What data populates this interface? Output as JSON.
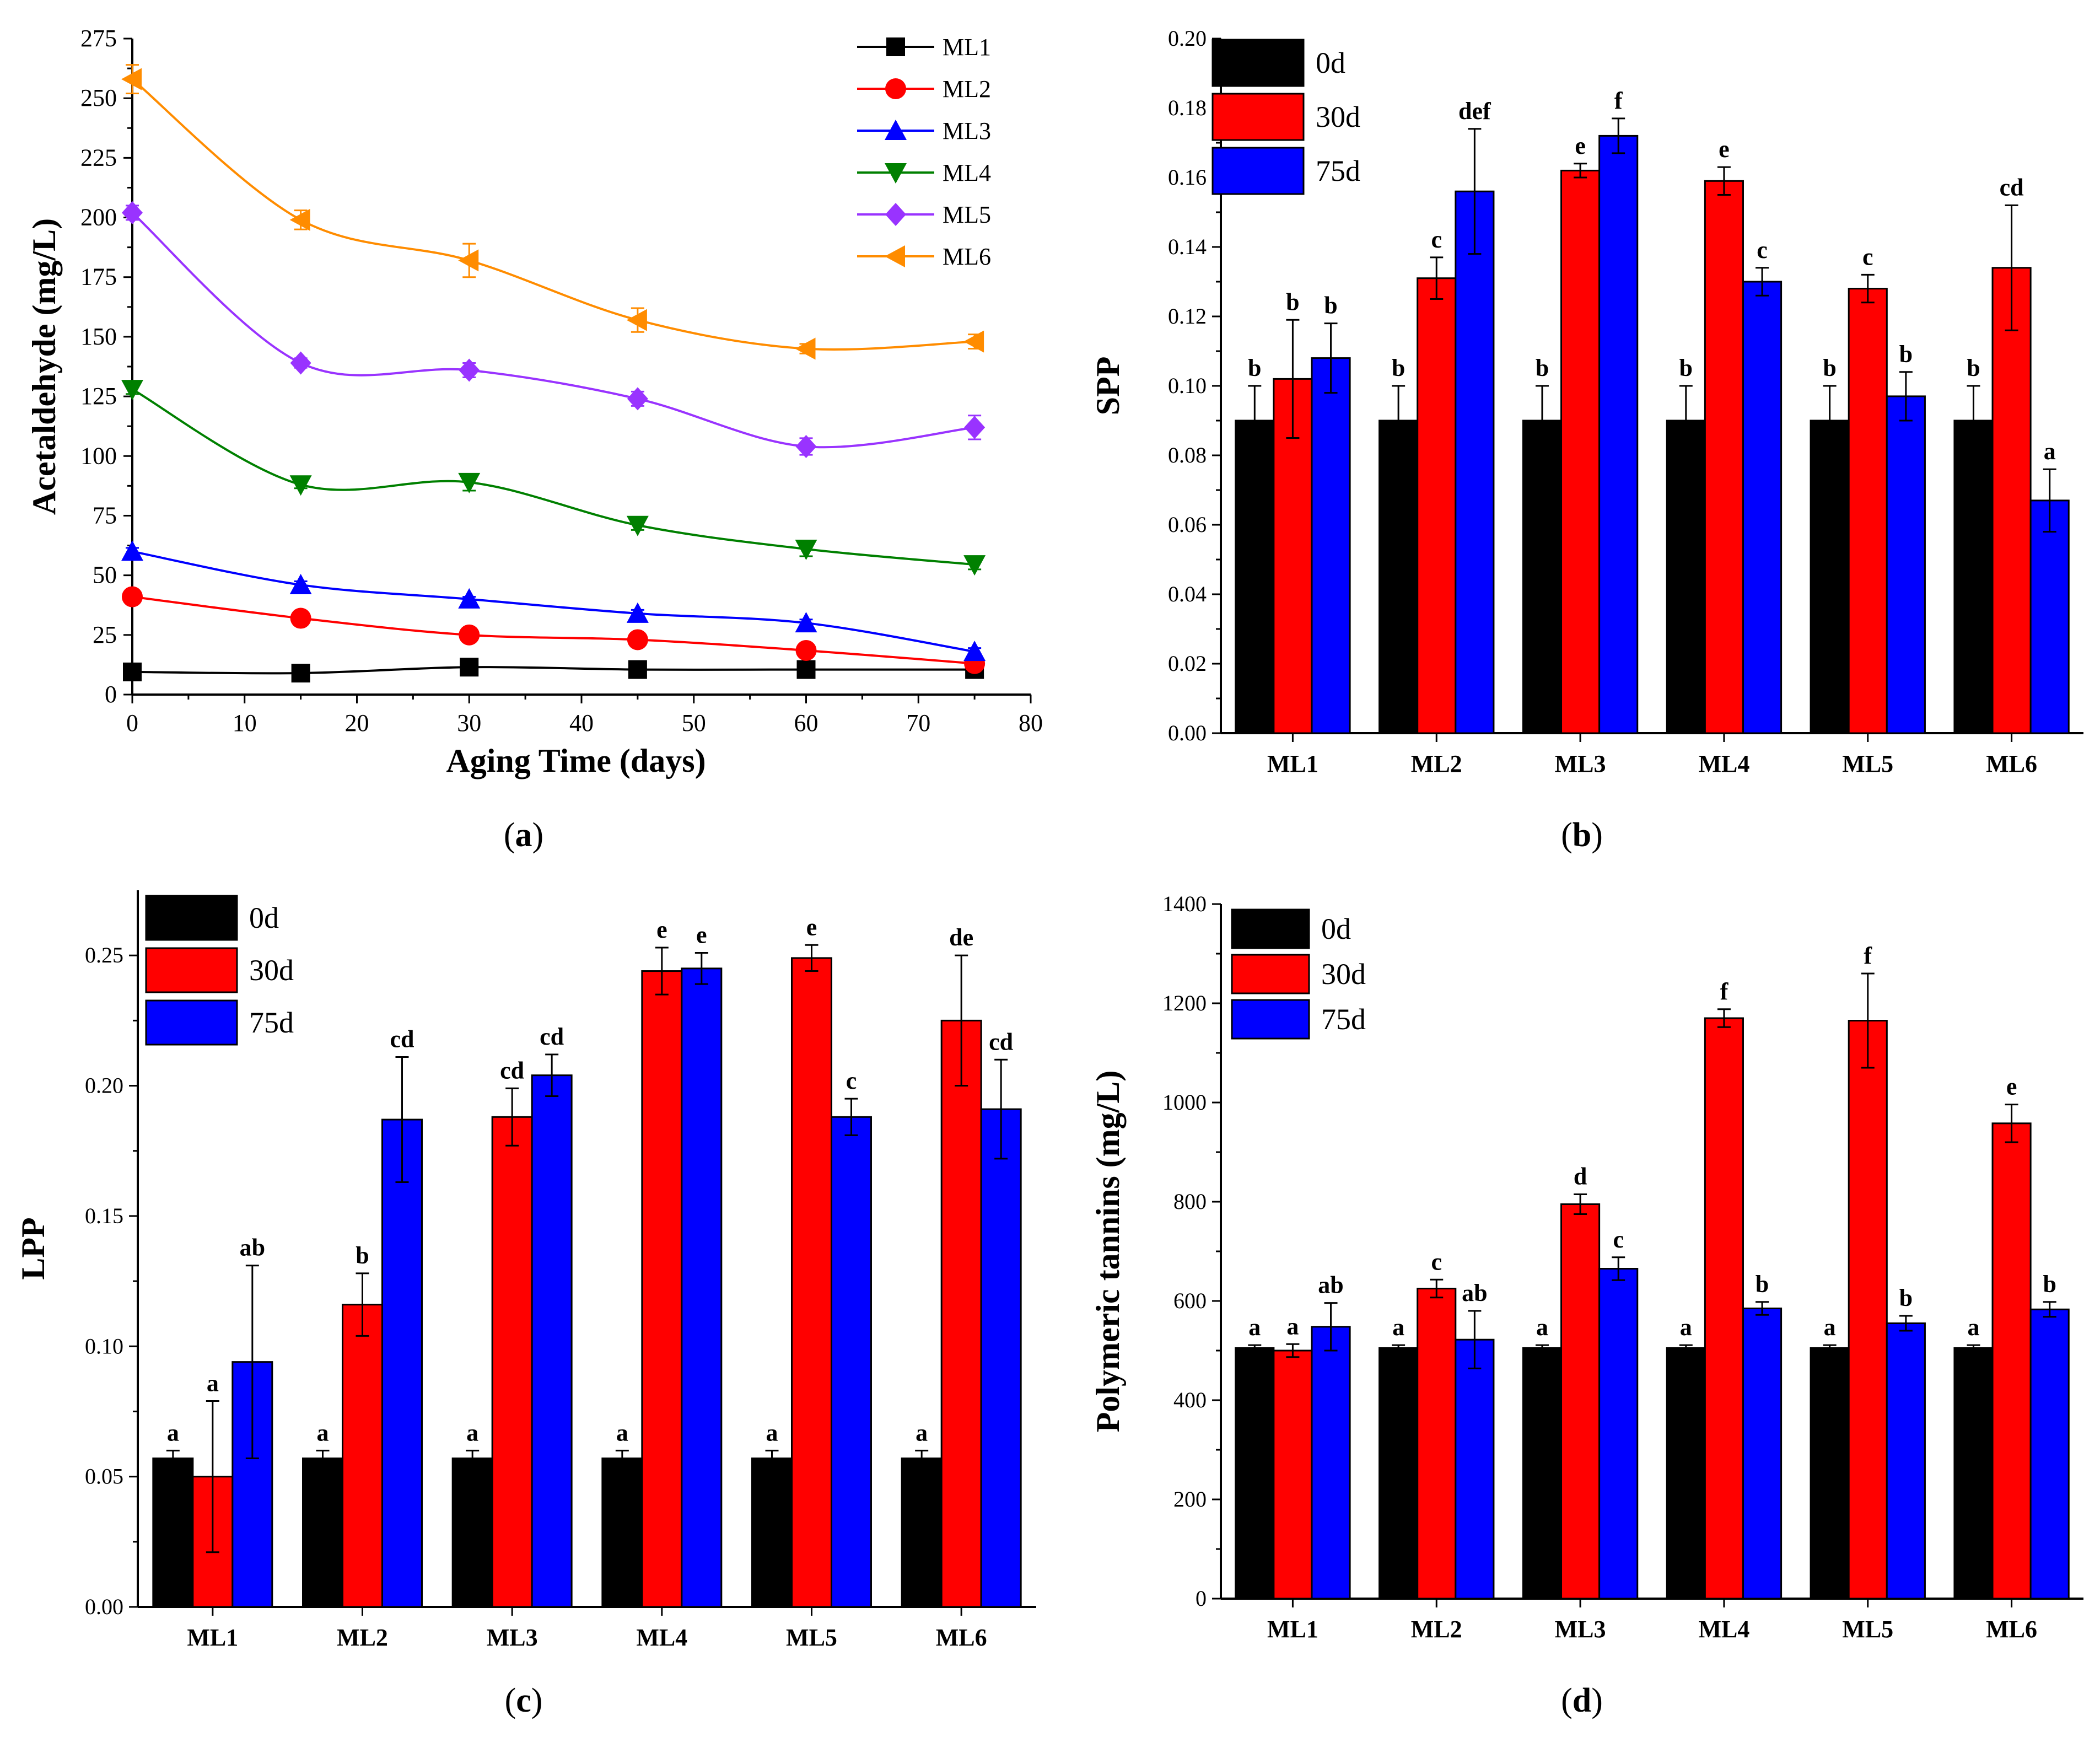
{
  "figure": {
    "panel_labels": [
      "a",
      "b",
      "c",
      "d"
    ]
  },
  "chart_data": [
    {
      "type": "line",
      "panel": "a",
      "title": "",
      "xlabel": "Aging Time (days)",
      "ylabel": "Acetaldehyde (mg/L)",
      "xlim": [
        0,
        80
      ],
      "ylim": [
        0,
        275
      ],
      "xticks": [
        0,
        10,
        20,
        30,
        40,
        50,
        60,
        70,
        80
      ],
      "yticks": [
        0,
        25,
        50,
        75,
        100,
        125,
        150,
        175,
        200,
        225,
        250,
        275
      ],
      "grid": false,
      "legend_position": "top-right",
      "x": [
        0,
        15,
        30,
        45,
        60,
        75
      ],
      "series": [
        {
          "name": "ML1",
          "color": "#000000",
          "marker": "square",
          "values": [
            9.5,
            9,
            11.5,
            10.5,
            10.5,
            10.5
          ],
          "errors": [
            1,
            1,
            1.5,
            1,
            1,
            1
          ]
        },
        {
          "name": "ML2",
          "color": "#ff0000",
          "marker": "circle",
          "values": [
            41,
            32,
            25,
            23,
            18.5,
            13
          ],
          "errors": [
            1.5,
            3,
            1.5,
            1,
            1.5,
            1
          ]
        },
        {
          "name": "ML3",
          "color": "#0000ff",
          "marker": "triangle-up",
          "values": [
            60,
            46,
            40,
            34,
            30,
            18
          ],
          "errors": [
            1.5,
            1.5,
            1,
            1.5,
            1.5,
            1.5
          ]
        },
        {
          "name": "ML4",
          "color": "#008000",
          "marker": "triangle-down",
          "values": [
            128,
            88,
            89,
            71,
            61,
            54.5
          ],
          "errors": [
            2,
            1.5,
            3.5,
            2,
            3,
            2
          ]
        },
        {
          "name": "ML5",
          "color": "#9933ff",
          "marker": "diamond",
          "values": [
            202,
            139,
            136,
            124,
            104,
            112
          ],
          "errors": [
            3,
            2,
            3,
            3,
            3.5,
            5
          ]
        },
        {
          "name": "ML6",
          "color": "#ff8c00",
          "marker": "triangle-left",
          "values": [
            258,
            199,
            182,
            157,
            145,
            148
          ],
          "errors": [
            6,
            4,
            7,
            5,
            2,
            3
          ]
        }
      ]
    },
    {
      "type": "bar",
      "panel": "b",
      "title": "",
      "xlabel": "",
      "ylabel": "SPP",
      "ylim": [
        0,
        0.2
      ],
      "yticks": [
        "0.00",
        "0.02",
        "0.04",
        "0.06",
        "0.08",
        "0.10",
        "0.12",
        "0.14",
        "0.16",
        "0.18",
        "0.20"
      ],
      "grid": false,
      "legend_position": "top-left",
      "categories": [
        "ML1",
        "ML2",
        "ML3",
        "ML4",
        "ML5",
        "ML6"
      ],
      "series": [
        {
          "name": "0d",
          "color": "#000000",
          "values": [
            0.09,
            0.09,
            0.09,
            0.09,
            0.09,
            0.09
          ],
          "errors": [
            0.01,
            0.01,
            0.01,
            0.01,
            0.01,
            0.01
          ],
          "letters": [
            "b",
            "b",
            "b",
            "b",
            "b",
            "b"
          ]
        },
        {
          "name": "30d",
          "color": "#ff0000",
          "values": [
            0.102,
            0.131,
            0.162,
            0.159,
            0.128,
            0.134
          ],
          "errors": [
            0.017,
            0.006,
            0.002,
            0.004,
            0.004,
            0.018
          ],
          "letters": [
            "b",
            "c",
            "e",
            "e",
            "c",
            "cd"
          ]
        },
        {
          "name": "75d",
          "color": "#0000ff",
          "values": [
            0.108,
            0.156,
            0.172,
            0.13,
            0.097,
            0.067
          ],
          "errors": [
            0.01,
            0.018,
            0.005,
            0.004,
            0.007,
            0.009
          ],
          "letters": [
            "b",
            "def",
            "f",
            "c",
            "b",
            "a"
          ]
        }
      ]
    },
    {
      "type": "bar",
      "panel": "c",
      "title": "",
      "xlabel": "",
      "ylabel": "LPP",
      "ylim": [
        0,
        0.275
      ],
      "yticks": [
        "0.00",
        "0.05",
        "0.10",
        "0.15",
        "0.20",
        "0.25"
      ],
      "grid": false,
      "legend_position": "top-left",
      "categories": [
        "ML1",
        "ML2",
        "ML3",
        "ML4",
        "ML5",
        "ML6"
      ],
      "series": [
        {
          "name": "0d",
          "color": "#000000",
          "values": [
            0.057,
            0.057,
            0.057,
            0.057,
            0.057,
            0.057
          ],
          "errors": [
            0.003,
            0.003,
            0.003,
            0.003,
            0.003,
            0.003
          ],
          "letters": [
            "a",
            "a",
            "a",
            "a",
            "a",
            "a"
          ]
        },
        {
          "name": "30d",
          "color": "#ff0000",
          "values": [
            0.05,
            0.116,
            0.188,
            0.244,
            0.249,
            0.225
          ],
          "errors": [
            0.029,
            0.012,
            0.011,
            0.009,
            0.005,
            0.025
          ],
          "letters": [
            "a",
            "b",
            "cd",
            "e",
            "e",
            "de"
          ]
        },
        {
          "name": "75d",
          "color": "#0000ff",
          "values": [
            0.094,
            0.187,
            0.204,
            0.245,
            0.188,
            0.191
          ],
          "errors": [
            0.037,
            0.024,
            0.008,
            0.006,
            0.007,
            0.019
          ],
          "letters": [
            "ab",
            "cd",
            "cd",
            "e",
            "c",
            "cd"
          ]
        }
      ]
    },
    {
      "type": "bar",
      "panel": "d",
      "title": "",
      "xlabel": "",
      "ylabel": "Polymeric tannins (mg/L)",
      "ylim": [
        0,
        1400
      ],
      "yticks": [
        "0",
        "200",
        "400",
        "600",
        "800",
        "1000",
        "1200",
        "1400"
      ],
      "grid": false,
      "legend_position": "top-left",
      "categories": [
        "ML1",
        "ML2",
        "ML3",
        "ML4",
        "ML5",
        "ML6"
      ],
      "series": [
        {
          "name": "0d",
          "color": "#000000",
          "values": [
            505,
            505,
            505,
            505,
            505,
            505
          ],
          "errors": [
            6,
            6,
            6,
            6,
            6,
            6
          ],
          "letters": [
            "a",
            "a",
            "a",
            "a",
            "a",
            "a"
          ]
        },
        {
          "name": "30d",
          "color": "#ff0000",
          "values": [
            500,
            625,
            795,
            1170,
            1165,
            958
          ],
          "errors": [
            13,
            18,
            20,
            18,
            95,
            38
          ],
          "letters": [
            "a",
            "c",
            "d",
            "f",
            "f",
            "e"
          ]
        },
        {
          "name": "75d",
          "color": "#0000ff",
          "values": [
            548,
            522,
            665,
            585,
            555,
            583
          ],
          "errors": [
            48,
            58,
            23,
            13,
            15,
            15
          ],
          "letters": [
            "ab",
            "ab",
            "c",
            "b",
            "b",
            "b"
          ]
        }
      ]
    }
  ]
}
